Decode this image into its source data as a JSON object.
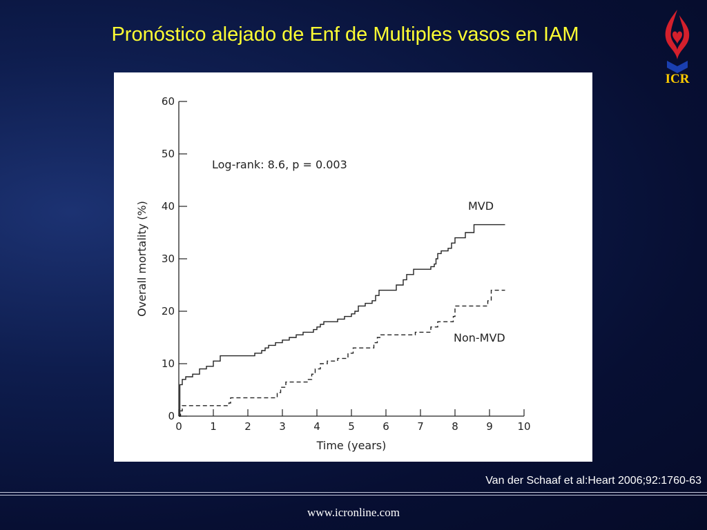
{
  "slide": {
    "title": "Pronóstico alejado de Enf de Multiples vasos en IAM",
    "logo_text": "ICR",
    "citation": "Van der Schaaf et al:Heart 2006;92:1760-63",
    "footer_url": "www.icronline.com"
  },
  "chart_data": {
    "type": "line",
    "drawstyle": "steps-post",
    "x_label": "Time (years)",
    "y_label": "Overall mortality (%)",
    "annotation": "Log-rank: 8.6, p = 0.003",
    "xlim": [
      0,
      10
    ],
    "xticks": [
      0,
      1,
      2,
      3,
      4,
      5,
      6,
      7,
      8,
      9,
      10
    ],
    "ylim": [
      0,
      60
    ],
    "yticks": [
      0,
      10,
      20,
      30,
      40,
      50,
      60
    ],
    "series": [
      {
        "name": "MVD",
        "color": "#222222",
        "linestyle": "solid",
        "x": [
          0,
          0.03,
          0.1,
          0.2,
          0.4,
          0.6,
          0.8,
          1.0,
          1.2,
          2.2,
          2.4,
          2.5,
          2.6,
          2.8,
          3.0,
          3.2,
          3.4,
          3.6,
          3.9,
          4.0,
          4.1,
          4.2,
          4.6,
          4.8,
          5.0,
          5.1,
          5.2,
          5.4,
          5.6,
          5.7,
          5.8,
          6.3,
          6.5,
          6.6,
          6.8,
          7.3,
          7.4,
          7.45,
          7.5,
          7.6,
          7.8,
          7.9,
          8.0,
          8.3,
          8.55,
          9.45
        ],
        "values": [
          0,
          6,
          7,
          7.5,
          8,
          9,
          9.5,
          10.5,
          11.5,
          12,
          12.5,
          13,
          13.5,
          14,
          14.5,
          15,
          15.5,
          16,
          16.5,
          17,
          17.5,
          18,
          18.5,
          19,
          19.5,
          20,
          21,
          21.5,
          22,
          23,
          24,
          25,
          26,
          27,
          28,
          28.5,
          29,
          30,
          31,
          31.5,
          32,
          33,
          34,
          35,
          36.5,
          36.5
        ]
      },
      {
        "name": "Non-MVD",
        "color": "#222222",
        "linestyle": "dashed",
        "x": [
          0,
          0.05,
          0.1,
          1.45,
          1.5,
          2.85,
          2.95,
          3.1,
          3.75,
          3.85,
          3.95,
          4.1,
          4.3,
          4.6,
          4.9,
          5.05,
          5.65,
          5.75,
          5.85,
          6.85,
          7.3,
          7.5,
          7.95,
          8.0,
          8.95,
          9.05,
          9.45
        ],
        "values": [
          0,
          1,
          2,
          2.5,
          3.5,
          4.5,
          5.5,
          6.5,
          7,
          8,
          9,
          10,
          10.5,
          11,
          12,
          13,
          14,
          15,
          15.5,
          16,
          17,
          18,
          19,
          21,
          22,
          24,
          24
        ]
      }
    ]
  }
}
